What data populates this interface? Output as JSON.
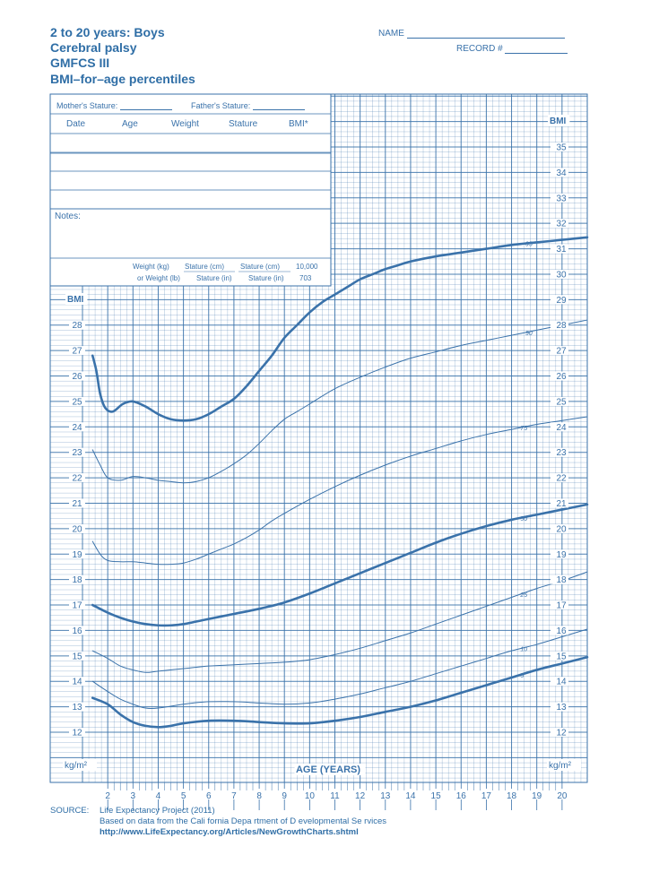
{
  "header": {
    "line1": "2 to 20 years: Boys",
    "line2": "Cerebral palsy",
    "line3": "GMFCS III",
    "line4": "BMI–for–age percentiles",
    "name_label": "NAME",
    "record_label": "RECORD #"
  },
  "record_table": {
    "mother_stature": "Mother's Stature:",
    "father_stature": "Father's Stature:",
    "columns": [
      "Date",
      "Age",
      "Weight",
      "Stature",
      "BMI*"
    ],
    "notes_label": "Notes:",
    "formula": {
      "w1": "Weight (kg)",
      "s1": "Stature (cm)",
      "s2": "Stature (cm)",
      "k1": "10,000",
      "w2": "or Weight (lb)",
      "s3": "Stature (in)",
      "s4": "Stature (in)",
      "k2": "703"
    }
  },
  "source": {
    "label": "SOURCE:",
    "line1": "Life Expectancy Project (2011)",
    "line2": "Based on data from the Cali   fornia Depa  rtment of D evelopmental Se  rvices",
    "line3": "http://www.LifeExpectancy.org/Articles/NewGrowthCharts.shtml"
  },
  "colors": {
    "grid": "#3a72aa",
    "curve": "#3a72aa",
    "text": "#2f6ea6"
  },
  "chart_data": {
    "type": "line",
    "xlabel": "AGE (YEARS)",
    "ylabel": "BMI",
    "left_ylabel": "BMI",
    "unit_label_left": "kg/m²",
    "unit_label_right": "kg/m²",
    "xlim": [
      1,
      21
    ],
    "ylim": [
      10.8,
      37.5
    ],
    "x_ticks": [
      2,
      3,
      4,
      5,
      6,
      7,
      8,
      9,
      10,
      11,
      12,
      13,
      14,
      15,
      16,
      17,
      18,
      19,
      20
    ],
    "y_ticks_right": [
      12,
      13,
      14,
      15,
      16,
      17,
      18,
      19,
      20,
      21,
      22,
      23,
      24,
      25,
      26,
      27,
      28,
      29,
      30,
      31,
      32,
      33,
      34,
      35
    ],
    "y_ticks_left": [
      12,
      13,
      14,
      15,
      16,
      17,
      18,
      19,
      20,
      21,
      22,
      23,
      24,
      25,
      26,
      27,
      28
    ],
    "grid": true,
    "series": [
      {
        "name": "95",
        "bold": true,
        "label_x": 18.55,
        "x": [
          1.4,
          1.55,
          1.7,
          1.9,
          2.2,
          2.6,
          3.0,
          3.5,
          4.0,
          4.5,
          5.0,
          5.5,
          6.0,
          6.5,
          7.0,
          7.5,
          8.0,
          8.5,
          9.0,
          9.5,
          10.0,
          10.5,
          11.0,
          11.5,
          12.0,
          12.5,
          13.0,
          13.5,
          14.0,
          15.0,
          16.0,
          17.0,
          18.0,
          19.0,
          20.0,
          21.0
        ],
        "y": [
          26.8,
          26.2,
          25.3,
          24.75,
          24.6,
          24.9,
          25.0,
          24.8,
          24.5,
          24.3,
          24.25,
          24.3,
          24.5,
          24.8,
          25.1,
          25.6,
          26.2,
          26.8,
          27.5,
          28.0,
          28.5,
          28.9,
          29.2,
          29.5,
          29.8,
          30.0,
          30.2,
          30.35,
          30.5,
          30.7,
          30.85,
          31.0,
          31.15,
          31.25,
          31.35,
          31.45
        ]
      },
      {
        "name": "90",
        "bold": false,
        "label_x": 18.55,
        "x": [
          1.4,
          1.7,
          2.0,
          2.5,
          3.0,
          3.5,
          4.0,
          4.5,
          5.0,
          5.5,
          6.0,
          6.5,
          7.0,
          7.5,
          8.0,
          8.5,
          9.0,
          9.5,
          10.0,
          11.0,
          12.0,
          13.0,
          14.0,
          15.0,
          16.0,
          17.0,
          18.0,
          19.0,
          20.0,
          21.0
        ],
        "y": [
          23.1,
          22.5,
          22.0,
          21.9,
          22.05,
          22.0,
          21.9,
          21.85,
          21.8,
          21.85,
          22.0,
          22.25,
          22.55,
          22.9,
          23.35,
          23.85,
          24.3,
          24.6,
          24.9,
          25.5,
          25.95,
          26.35,
          26.7,
          26.95,
          27.2,
          27.4,
          27.6,
          27.8,
          28.0,
          28.2
        ]
      },
      {
        "name": "75",
        "bold": false,
        "label_x": 18.35,
        "x": [
          1.4,
          1.7,
          2.0,
          2.5,
          3.0,
          3.5,
          4.0,
          4.5,
          5.0,
          5.5,
          6.0,
          6.5,
          7.0,
          7.5,
          8.0,
          8.5,
          9.0,
          10.0,
          11.0,
          12.0,
          13.0,
          14.0,
          15.0,
          16.0,
          17.0,
          18.0,
          19.0,
          20.0,
          21.0
        ],
        "y": [
          19.5,
          19.0,
          18.75,
          18.7,
          18.7,
          18.65,
          18.6,
          18.6,
          18.65,
          18.8,
          19.0,
          19.2,
          19.4,
          19.65,
          19.95,
          20.3,
          20.6,
          21.15,
          21.65,
          22.1,
          22.5,
          22.85,
          23.15,
          23.45,
          23.7,
          23.9,
          24.1,
          24.25,
          24.4
        ]
      },
      {
        "name": "50",
        "bold": true,
        "label_x": 18.35,
        "x": [
          1.4,
          2.0,
          2.5,
          3.0,
          3.5,
          4.0,
          4.5,
          5.0,
          6.0,
          7.0,
          8.0,
          9.0,
          10.0,
          11.0,
          12.0,
          13.0,
          14.0,
          15.0,
          16.0,
          17.0,
          18.0,
          19.0,
          20.0,
          21.0
        ],
        "y": [
          17.0,
          16.7,
          16.5,
          16.35,
          16.25,
          16.2,
          16.2,
          16.25,
          16.45,
          16.65,
          16.85,
          17.1,
          17.45,
          17.85,
          18.25,
          18.65,
          19.05,
          19.45,
          19.8,
          20.1,
          20.35,
          20.55,
          20.75,
          20.95
        ]
      },
      {
        "name": "25",
        "bold": false,
        "label_x": 18.35,
        "x": [
          1.4,
          2.0,
          2.5,
          3.0,
          3.5,
          4.0,
          5.0,
          6.0,
          7.0,
          8.0,
          9.0,
          10.0,
          11.0,
          12.0,
          13.0,
          14.0,
          15.0,
          16.0,
          17.0,
          18.0,
          19.0,
          20.0,
          21.0
        ],
        "y": [
          15.2,
          14.9,
          14.6,
          14.45,
          14.35,
          14.4,
          14.5,
          14.6,
          14.65,
          14.7,
          14.75,
          14.85,
          15.05,
          15.3,
          15.6,
          15.9,
          16.25,
          16.6,
          16.95,
          17.3,
          17.65,
          17.95,
          18.3
        ]
      },
      {
        "name": "10",
        "bold": false,
        "label_x": 18.35,
        "x": [
          1.4,
          2.0,
          2.5,
          3.0,
          3.5,
          4.0,
          5.0,
          6.0,
          7.0,
          8.0,
          9.0,
          10.0,
          11.0,
          12.0,
          13.0,
          14.0,
          15.0,
          16.0,
          17.0,
          18.0,
          19.0,
          20.0,
          21.0
        ],
        "y": [
          14.0,
          13.6,
          13.3,
          13.1,
          12.95,
          12.95,
          13.1,
          13.2,
          13.2,
          13.15,
          13.1,
          13.15,
          13.3,
          13.5,
          13.75,
          14.0,
          14.3,
          14.6,
          14.9,
          15.2,
          15.45,
          15.75,
          16.05
        ]
      },
      {
        "name": "5",
        "bold": true,
        "label_x": 18.35,
        "x": [
          1.4,
          2.0,
          2.5,
          3.0,
          3.5,
          4.0,
          4.5,
          5.0,
          6.0,
          7.0,
          8.0,
          9.0,
          10.0,
          11.0,
          12.0,
          13.0,
          14.0,
          15.0,
          16.0,
          17.0,
          18.0,
          19.0,
          20.0,
          21.0
        ],
        "y": [
          13.35,
          13.1,
          12.7,
          12.4,
          12.25,
          12.2,
          12.25,
          12.35,
          12.45,
          12.45,
          12.4,
          12.35,
          12.35,
          12.45,
          12.6,
          12.8,
          13.0,
          13.25,
          13.55,
          13.85,
          14.15,
          14.45,
          14.7,
          14.95
        ]
      }
    ]
  }
}
